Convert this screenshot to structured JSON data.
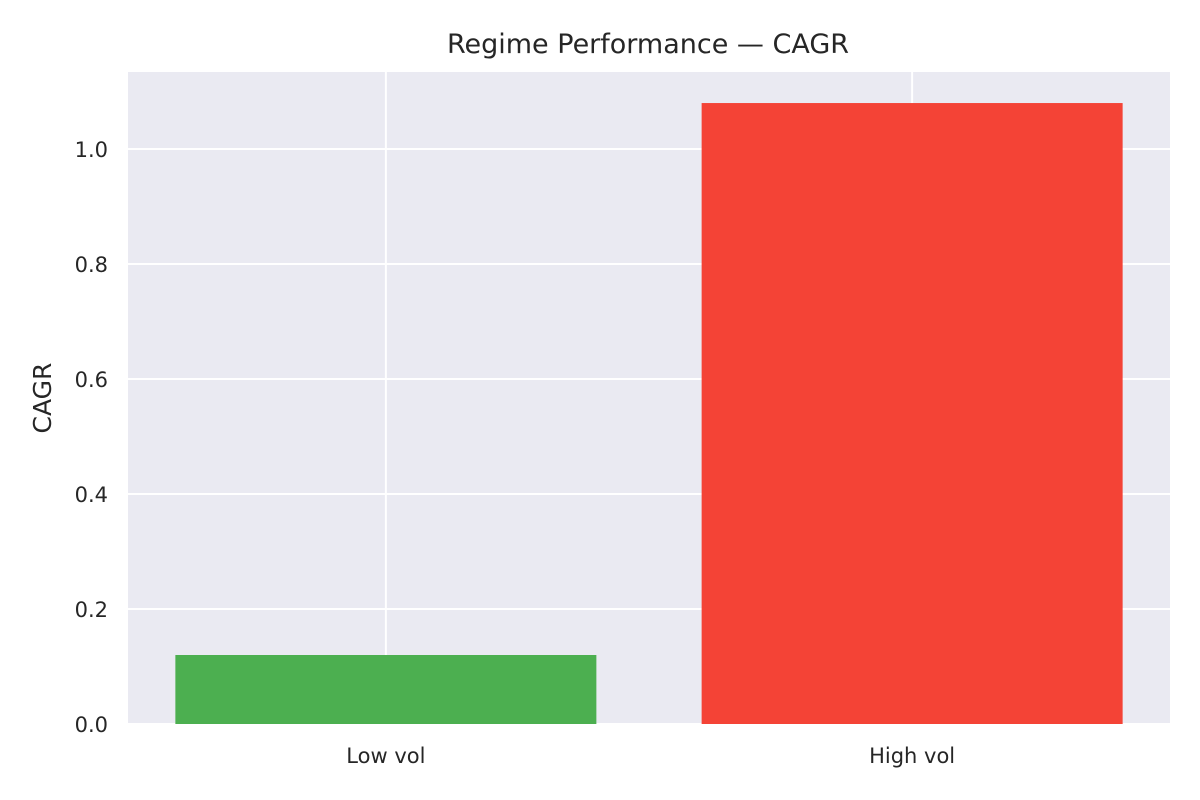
{
  "chart_data": {
    "type": "bar",
    "title": "Regime Performance — CAGR",
    "xlabel": "",
    "ylabel": "CAGR",
    "categories": [
      "Low vol",
      "High vol"
    ],
    "values": [
      0.12,
      1.08
    ],
    "bar_colors": [
      "#4caf50",
      "#f44336"
    ],
    "ylim": [
      0,
      1.134
    ],
    "yticks": [
      0.0,
      0.2,
      0.4,
      0.6,
      0.8,
      1.0
    ],
    "ytick_labels": [
      "0.0",
      "0.2",
      "0.4",
      "0.6",
      "0.8",
      "1.0"
    ],
    "grid": true,
    "legend": "none"
  },
  "style": {
    "plot_background": "#eaeaf2",
    "grid_color": "#ffffff",
    "text_color": "#262626"
  }
}
